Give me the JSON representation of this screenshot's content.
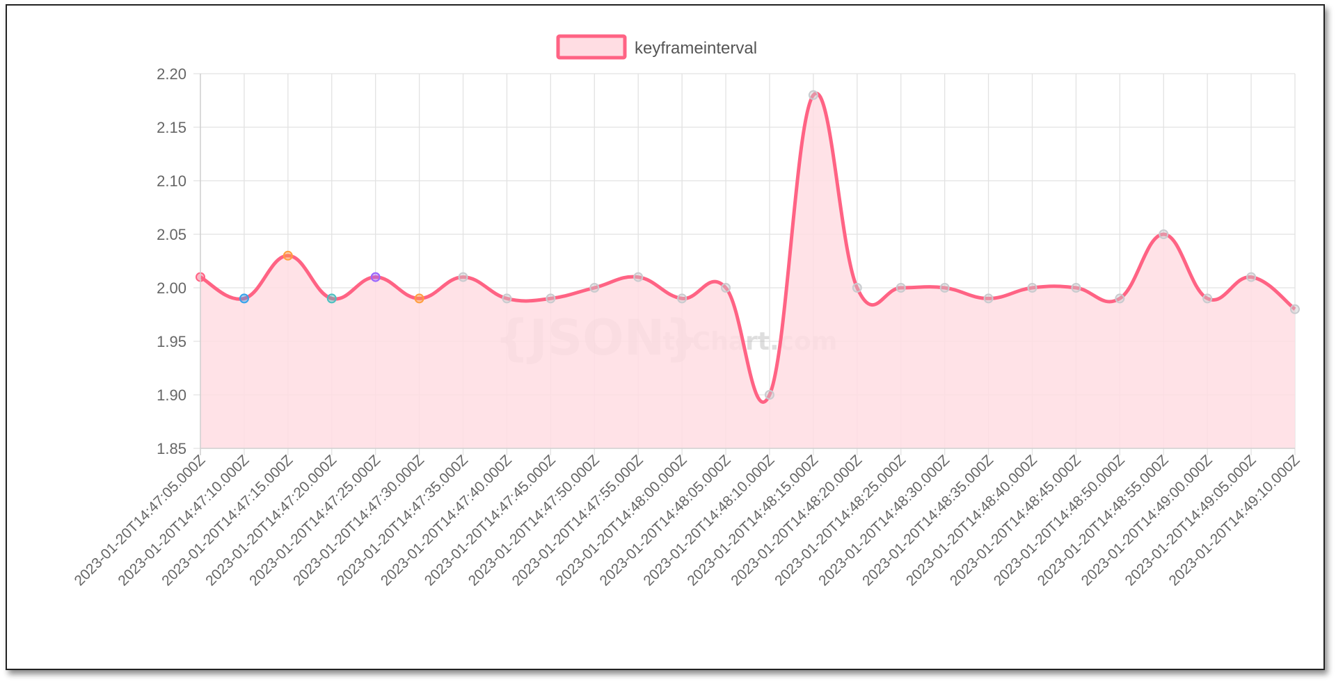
{
  "chart_data": {
    "type": "line",
    "x": [
      "2023-01-20T14:47:05.000Z",
      "2023-01-20T14:47:10.000Z",
      "2023-01-20T14:47:15.000Z",
      "2023-01-20T14:47:20.000Z",
      "2023-01-20T14:47:25.000Z",
      "2023-01-20T14:47:30.000Z",
      "2023-01-20T14:47:35.000Z",
      "2023-01-20T14:47:40.000Z",
      "2023-01-20T14:47:45.000Z",
      "2023-01-20T14:47:50.000Z",
      "2023-01-20T14:47:55.000Z",
      "2023-01-20T14:48:00.000Z",
      "2023-01-20T14:48:05.000Z",
      "2023-01-20T14:48:10.000Z",
      "2023-01-20T14:48:15.000Z",
      "2023-01-20T14:48:20.000Z",
      "2023-01-20T14:48:25.000Z",
      "2023-01-20T14:48:30.000Z",
      "2023-01-20T14:48:35.000Z",
      "2023-01-20T14:48:40.000Z",
      "2023-01-20T14:48:45.000Z",
      "2023-01-20T14:48:50.000Z",
      "2023-01-20T14:48:55.000Z",
      "2023-01-20T14:49:00.000Z",
      "2023-01-20T14:49:05.000Z",
      "2023-01-20T14:49:10.000Z"
    ],
    "series": [
      {
        "name": "keyframeinterval",
        "values": [
          2.01,
          1.99,
          2.03,
          1.99,
          2.01,
          1.99,
          2.01,
          1.99,
          1.99,
          2.0,
          2.01,
          1.99,
          2.0,
          1.9,
          2.18,
          2.0,
          2.0,
          2.0,
          1.99,
          2.0,
          2.0,
          1.99,
          2.05,
          1.99,
          2.01,
          1.98
        ],
        "line_color": "#ff6384",
        "fill_color": "#ffdde3"
      }
    ],
    "point_colors": [
      "#ff6384",
      "#36a2eb",
      "#ff9f40",
      "#4bc0c0",
      "#9966ff",
      "#ff9f40",
      "#c9cbcf",
      "#c9cbcf",
      "#c9cbcf",
      "#c9cbcf",
      "#c9cbcf",
      "#c9cbcf",
      "#c9cbcf",
      "#c9cbcf",
      "#c9cbcf",
      "#c9cbcf",
      "#c9cbcf",
      "#c9cbcf",
      "#c9cbcf",
      "#c9cbcf",
      "#c9cbcf",
      "#c9cbcf",
      "#c9cbcf",
      "#c9cbcf",
      "#c9cbcf",
      "#c9cbcf"
    ],
    "y_ticks": [
      "2.20",
      "2.15",
      "2.10",
      "2.05",
      "2.00",
      "1.95",
      "1.90",
      "1.85"
    ],
    "ylim": [
      1.85,
      2.2
    ],
    "grid": true,
    "legend_position": "top",
    "watermark": "{JSON} toChart.com"
  }
}
